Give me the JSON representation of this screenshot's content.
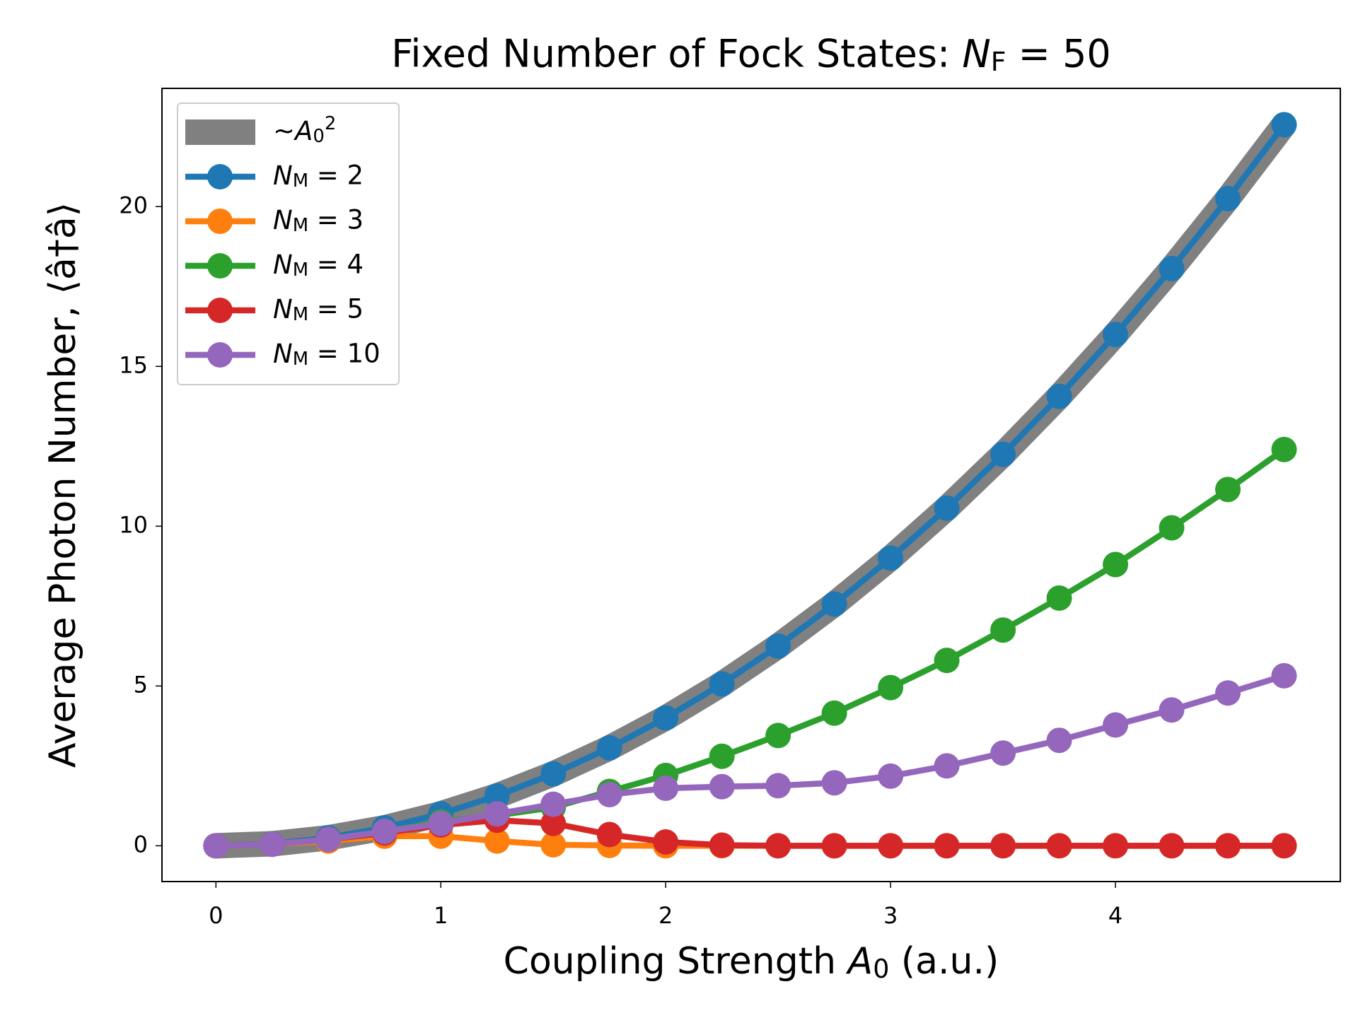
{
  "chart_data": {
    "type": "line",
    "title": "Fixed Number of Fock States: N_F = 50",
    "x_label": "Coupling Strength A_0 (a.u.)",
    "y_label": "Average Photon Number, ⟨â†â⟩",
    "x": [
      0,
      0.25,
      0.5,
      0.75,
      1,
      1.25,
      1.5,
      1.75,
      2,
      2.25,
      2.5,
      2.75,
      3,
      3.25,
      3.5,
      3.75,
      4,
      4.25,
      4.5,
      4.75
    ],
    "series": [
      {
        "name": "~A_0^2",
        "color": "#808080",
        "style": "band",
        "values": [
          0,
          0.0625,
          0.25,
          0.5625,
          1,
          1.5625,
          2.25,
          3.0625,
          4,
          5.0625,
          6.25,
          7.5625,
          9,
          10.5625,
          12.25,
          14.0625,
          16,
          18.0625,
          20.25,
          22.5625
        ]
      },
      {
        "name": "N_M = 2",
        "color": "#1f77b4",
        "values": [
          0,
          0.0625,
          0.25,
          0.5625,
          1,
          1.5625,
          2.25,
          3.0625,
          4,
          5.0625,
          6.25,
          7.5625,
          9,
          10.5625,
          12.25,
          14.0625,
          16,
          18.0625,
          20.25,
          22.5625
        ]
      },
      {
        "name": "N_M = 3",
        "color": "#ff7f0e",
        "values": [
          0,
          0.05,
          0.15,
          0.3,
          0.3,
          0.15,
          0.03,
          0.01,
          0,
          0,
          0,
          0,
          0,
          0,
          0,
          0,
          0,
          0,
          0,
          0
        ]
      },
      {
        "name": "N_M = 4",
        "color": "#2ca02c",
        "values": [
          0,
          0.05,
          0.2,
          0.45,
          0.75,
          0.95,
          1.2,
          1.7,
          2.2,
          2.8,
          3.45,
          4.15,
          4.95,
          5.8,
          6.75,
          7.75,
          8.8,
          9.95,
          11.15,
          12.4
        ]
      },
      {
        "name": "N_M = 5",
        "color": "#d62728",
        "values": [
          0,
          0.05,
          0.2,
          0.4,
          0.65,
          0.8,
          0.7,
          0.35,
          0.12,
          0.02,
          0,
          0,
          0,
          0,
          0,
          0,
          0,
          0,
          0,
          0
        ]
      },
      {
        "name": "N_M = 10",
        "color": "#9467bd",
        "values": [
          0,
          0.05,
          0.2,
          0.45,
          0.7,
          1.0,
          1.3,
          1.6,
          1.8,
          1.85,
          1.88,
          1.97,
          2.18,
          2.5,
          2.9,
          3.3,
          3.78,
          4.25,
          4.78,
          5.32
        ]
      }
    ],
    "xlim": [
      -0.24,
      5.0
    ],
    "xticks": [
      0,
      1,
      2,
      3,
      4
    ],
    "ylim": [
      -1.12,
      23.7
    ],
    "yticks": [
      0,
      5,
      10,
      15,
      20
    ],
    "legend": "upper left",
    "grid": false
  }
}
